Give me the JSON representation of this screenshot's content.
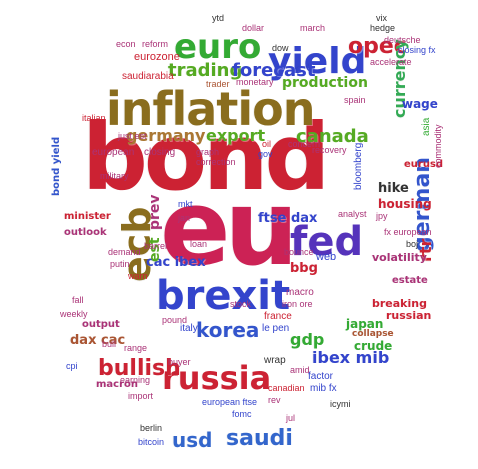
{
  "cloud": {
    "words": [
      {
        "text": "bond",
        "color": "#cc2233"
      },
      {
        "text": "eu",
        "color": "#cc2255"
      },
      {
        "text": "inflation",
        "color": "#8a6d1e"
      },
      {
        "text": "brexit",
        "color": "#3344cc"
      },
      {
        "text": "euro",
        "color": "#33aa33"
      },
      {
        "text": "yield",
        "color": "#3344cc"
      },
      {
        "text": "opec",
        "color": "#cc2233"
      },
      {
        "text": "fed",
        "color": "#5533bb"
      },
      {
        "text": "russia",
        "color": "#cc2233"
      },
      {
        "text": "ecb",
        "color": "#8a6d1e"
      },
      {
        "text": "trading",
        "color": "#55aa22"
      },
      {
        "text": "forecast",
        "color": "#3344cc"
      },
      {
        "text": "germany",
        "color": "#aa7733"
      },
      {
        "text": "export",
        "color": "#55aa22"
      },
      {
        "text": "canada",
        "color": "#55aa22"
      },
      {
        "text": "korea",
        "color": "#3355cc"
      },
      {
        "text": "bullish",
        "color": "#cc2233"
      },
      {
        "text": "saudi",
        "color": "#3366cc"
      },
      {
        "text": "usd",
        "color": "#3366cc"
      },
      {
        "text": "production",
        "color": "#55aa22"
      },
      {
        "text": "german",
        "color": "#3355cc"
      },
      {
        "text": "currency",
        "color": "#33aa55"
      },
      {
        "text": "gdp",
        "color": "#33aa33"
      },
      {
        "text": "ibex mib",
        "color": "#3344cc"
      },
      {
        "text": "japan",
        "color": "#33aa33"
      },
      {
        "text": "crude",
        "color": "#33aa33"
      },
      {
        "text": "ftse dax",
        "color": "#3344cc"
      },
      {
        "text": "cac ibex",
        "color": "#3344cc"
      },
      {
        "text": "bbg",
        "color": "#cc2233"
      },
      {
        "text": "hike",
        "color": "#333333"
      },
      {
        "text": "housing",
        "color": "#cc2233"
      },
      {
        "text": "rtr",
        "color": "#cc2233"
      },
      {
        "text": "breaking",
        "color": "#cc2233"
      },
      {
        "text": "volatility",
        "color": "#aa3377"
      },
      {
        "text": "russian",
        "color": "#cc2233"
      },
      {
        "text": "collapse",
        "color": "#aa5533"
      },
      {
        "text": "dax cac",
        "color": "#aa5533"
      },
      {
        "text": "output",
        "color": "#aa3377"
      },
      {
        "text": "macron",
        "color": "#aa3377"
      },
      {
        "text": "outlook",
        "color": "#aa3377"
      },
      {
        "text": "minister",
        "color": "#cc2233"
      },
      {
        "text": "bond yield",
        "color": "#3355cc"
      },
      {
        "text": "estate",
        "color": "#aa3377"
      },
      {
        "text": "eurusd",
        "color": "#cc2233"
      },
      {
        "text": "wage",
        "color": "#3344cc"
      },
      {
        "text": "prev",
        "color": "#aa3377"
      },
      {
        "text": "est",
        "color": "#55aa22"
      },
      {
        "text": "saudiarabia",
        "color": "#cc2233"
      },
      {
        "text": "eurozone",
        "color": "#cc2233"
      },
      {
        "text": "trader",
        "color": "#aa5533"
      },
      {
        "text": "monetary",
        "color": "#aa3377"
      },
      {
        "text": "european",
        "color": "#aa3377"
      },
      {
        "text": "closing",
        "color": "#aa3377"
      },
      {
        "text": "italian",
        "color": "#cc2233"
      },
      {
        "text": "mkt",
        "color": "#3344cc"
      },
      {
        "text": "loan",
        "color": "#aa3377"
      },
      {
        "text": "barrel",
        "color": "#aa3377"
      },
      {
        "text": "web",
        "color": "#3344cc"
      },
      {
        "text": "macro",
        "color": "#aa3377"
      },
      {
        "text": "italy",
        "color": "#3344cc"
      },
      {
        "text": "france",
        "color": "#cc2233"
      },
      {
        "text": "pound",
        "color": "#aa3377"
      },
      {
        "text": "le pen",
        "color": "#3344cc"
      },
      {
        "text": "wrap",
        "color": "#333333"
      },
      {
        "text": "factor",
        "color": "#3344cc"
      },
      {
        "text": "mib fx",
        "color": "#3344cc"
      },
      {
        "text": "canadian",
        "color": "#cc2233"
      },
      {
        "text": "earning",
        "color": "#aa3377"
      },
      {
        "text": "buyer",
        "color": "#aa3377"
      },
      {
        "text": "european ftse",
        "color": "#3344cc"
      },
      {
        "text": "fomc",
        "color": "#3344cc"
      },
      {
        "text": "berlin",
        "color": "#333333"
      },
      {
        "text": "bitcoin",
        "color": "#3344cc"
      },
      {
        "text": "vix",
        "color": "#333333"
      },
      {
        "text": "hedge",
        "color": "#333333"
      },
      {
        "text": "deutsche",
        "color": "#aa3377"
      },
      {
        "text": "dow",
        "color": "#333333"
      },
      {
        "text": "reform",
        "color": "#aa3377"
      },
      {
        "text": "accelerate",
        "color": "#aa3377"
      },
      {
        "text": "closing fx",
        "color": "#3344cc"
      },
      {
        "text": "spain",
        "color": "#aa3377"
      },
      {
        "text": "concern",
        "color": "#aa3377"
      },
      {
        "text": "putin",
        "color": "#aa3377"
      },
      {
        "text": "warn",
        "color": "#cc2233"
      },
      {
        "text": "import",
        "color": "#aa3377"
      },
      {
        "text": "bull",
        "color": "#aa3377"
      },
      {
        "text": "range",
        "color": "#aa3377"
      },
      {
        "text": "weekly",
        "color": "#aa3377"
      },
      {
        "text": "analyst",
        "color": "#aa3377"
      },
      {
        "text": "bloomberg",
        "color": "#3344cc"
      },
      {
        "text": "recovery",
        "color": "#aa3377"
      },
      {
        "text": "gov",
        "color": "#3344cc"
      },
      {
        "text": "econ",
        "color": "#aa3377"
      },
      {
        "text": "asia",
        "color": "#33aa33"
      },
      {
        "text": "fx european",
        "color": "#aa3377"
      },
      {
        "text": "boj",
        "color": "#333333"
      },
      {
        "text": "jpy",
        "color": "#aa3377"
      },
      {
        "text": "icymi",
        "color": "#333333"
      },
      {
        "text": "rev",
        "color": "#aa3377"
      },
      {
        "text": "iron ore",
        "color": "#aa3377"
      },
      {
        "text": "bounce",
        "color": "#aa3377"
      },
      {
        "text": "cpi",
        "color": "#3344cc"
      },
      {
        "text": "commodity",
        "color": "#aa3377"
      },
      {
        "text": "fall",
        "color": "#aa3377"
      },
      {
        "text": "demand",
        "color": "#aa3377"
      },
      {
        "text": "oil",
        "color": "#cc2233"
      },
      {
        "text": "ytd",
        "color": "#333333"
      },
      {
        "text": "graph",
        "color": "#aa3377"
      },
      {
        "text": "correction",
        "color": "#aa3377"
      },
      {
        "text": "dollar",
        "color": "#aa3377"
      },
      {
        "text": "march",
        "color": "#aa3377"
      },
      {
        "text": "military",
        "color": "#aa3377"
      },
      {
        "text": "stock",
        "color": "#aa3377"
      },
      {
        "text": "jan",
        "color": "#aa3377"
      },
      {
        "text": "jul",
        "color": "#aa3377"
      },
      {
        "text": "amid",
        "color": "#aa3377"
      },
      {
        "text": "just est",
        "color": "#aa3377"
      }
    ]
  }
}
